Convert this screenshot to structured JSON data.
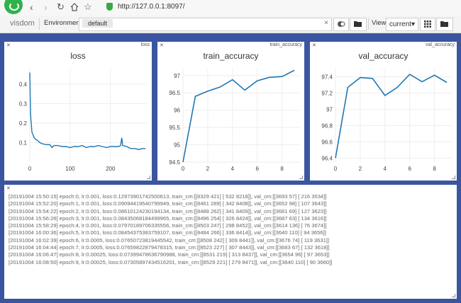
{
  "browser": {
    "url": "http://127.0.0.1:8097/",
    "back_icon": "chevron-left-icon",
    "forward_icon": "chevron-right-icon",
    "reload_icon": "reload-icon",
    "home_icon": "home-icon",
    "star_icon": "star-icon"
  },
  "toolbar": {
    "brand": "visdom",
    "environment_label": "Environment",
    "environment_chip": "default",
    "clear_symbol": "×",
    "view_label": "View",
    "view_value": "current",
    "view_caret": "▾"
  },
  "panes": {
    "loss": {
      "close": "✕",
      "title_tag": "loss"
    },
    "train_accuracy": {
      "close": "✕",
      "title_tag": "train_accuracy"
    },
    "val_accuracy": {
      "close": "✕",
      "title_tag": "val_accuracy"
    },
    "log": {
      "close": "✕"
    }
  },
  "chart_data": [
    {
      "type": "line",
      "title": "loss",
      "xlim": [
        0,
        290
      ],
      "ylim": [
        0,
        0.48
      ],
      "xticks": [
        0,
        100,
        200
      ],
      "yticks": [
        0.1,
        0.2,
        0.3,
        0.4
      ],
      "color": "#1f77b4",
      "x": [
        0,
        1,
        2,
        3,
        4,
        5,
        6,
        8,
        10,
        13,
        16,
        20,
        25,
        30,
        40,
        50,
        55,
        60,
        70,
        80,
        90,
        100,
        110,
        120,
        130,
        140,
        150,
        160,
        170,
        180,
        190,
        200,
        210,
        220,
        225,
        228,
        230,
        240,
        250,
        260,
        270,
        280,
        287
      ],
      "y": [
        0.46,
        0.33,
        0.25,
        0.21,
        0.19,
        0.16,
        0.15,
        0.14,
        0.13,
        0.12,
        0.115,
        0.11,
        0.1,
        0.095,
        0.09,
        0.09,
        0.075,
        0.085,
        0.085,
        0.08,
        0.08,
        0.075,
        0.08,
        0.08,
        0.085,
        0.075,
        0.08,
        0.08,
        0.085,
        0.08,
        0.075,
        0.08,
        0.08,
        0.08,
        0.085,
        0.125,
        0.085,
        0.08,
        0.07,
        0.07,
        0.065,
        0.07,
        0.07
      ]
    },
    {
      "type": "line",
      "title": "train_accuracy",
      "xlim": [
        0,
        9.4
      ],
      "ylim": [
        94.5,
        97.2
      ],
      "xticks": [
        0,
        2,
        4,
        6,
        8
      ],
      "yticks": [
        94.5,
        95,
        95.5,
        96,
        96.5,
        97
      ],
      "color": "#1f77b4",
      "x": [
        0,
        1,
        2,
        3,
        4,
        5,
        6,
        7,
        8,
        9
      ],
      "y": [
        94.5,
        96.4,
        96.55,
        96.67,
        96.88,
        96.58,
        96.85,
        96.95,
        96.97,
        97.15
      ]
    },
    {
      "type": "line",
      "title": "val_accuracy",
      "xlim": [
        0,
        9.4
      ],
      "ylim": [
        96.35,
        97.5
      ],
      "xticks": [
        0,
        2,
        4,
        6,
        8
      ],
      "yticks": [
        96.4,
        96.6,
        96.8,
        97,
        97.2,
        97.4
      ],
      "color": "#1f77b4",
      "x": [
        0,
        1,
        2,
        3,
        4,
        5,
        6,
        7,
        8,
        9
      ],
      "y": [
        96.4,
        97.27,
        97.39,
        97.38,
        97.17,
        97.27,
        97.43,
        97.34,
        97.42,
        97.33
      ]
    }
  ],
  "log_lines": [
    "[20191004 15:50:15] epoch:0, lr:0.001, loss:0.12973901742500613, train_cm:[[8329 421] [ 532 8218]], val_cm:[[3693 57] [ 216 3534]]",
    "[20191004 15:52:20] epoch:1, lr:0.001, loss:0.09094419540799949, train_cm:[[8461 289] [ 342 8408]], val_cm:[[3652 98] [ 107 3643]]",
    "[20191004 15:54:22] epoch:2, lr:0.001, loss:0.08610124230194134, train_cm:[[8488 262] [ 341 8409]], val_cm:[[3681 69] [ 127 3623]]",
    "[20191004 15:56:26] epoch:3, lr:0.001, loss:0.08435068184499965, train_cm:[[8496 254] [ 326 8424]], val_cm:[[3687 63] [ 134 3616]]",
    "[20191004 15:58:29] epoch:4, lr:0.001, loss:0.07970189706335556, train_cm:[[8503 247] [ 298 8452]], val_cm:[[3614 136] [ 76 3674]]",
    "[20191004 16:00:36] epoch:5, lr:0.001, loss:0.08454375383759107, train_cm:[[8484 266] [ 336 8414]], val_cm:[[3640 110] [ 94 3656]]",
    "[20191004 16:02:39] epoch:6, lr:0.0005, loss:0.07650723819445542, train_cm:[[8508 242] [ 309 8441]], val_cm:[[3676 74] [ 119 3631]]",
    "[20191004 16:04:44] epoch:7, lr:0.0005, loss:0.07659822879478315, train_cm:[[8523 227] [ 307 8443]], val_cm:[[3683 67] [ 132 3618]]",
    "[20191004 16:06:47] epoch:8, lr:0.00025, loss:0.07399478636790988, train_cm:[[8531 219] [ 313 8437]], val_cm:[[3654 96] [ 97 3653]]",
    "[20191004 16:08:50] epoch:9, lr:0.00025, loss:0.07305897434516201, train_cm:[[8529 221] [ 279 8471]], val_cm:[[3640 110] [ 90 3660]]"
  ]
}
